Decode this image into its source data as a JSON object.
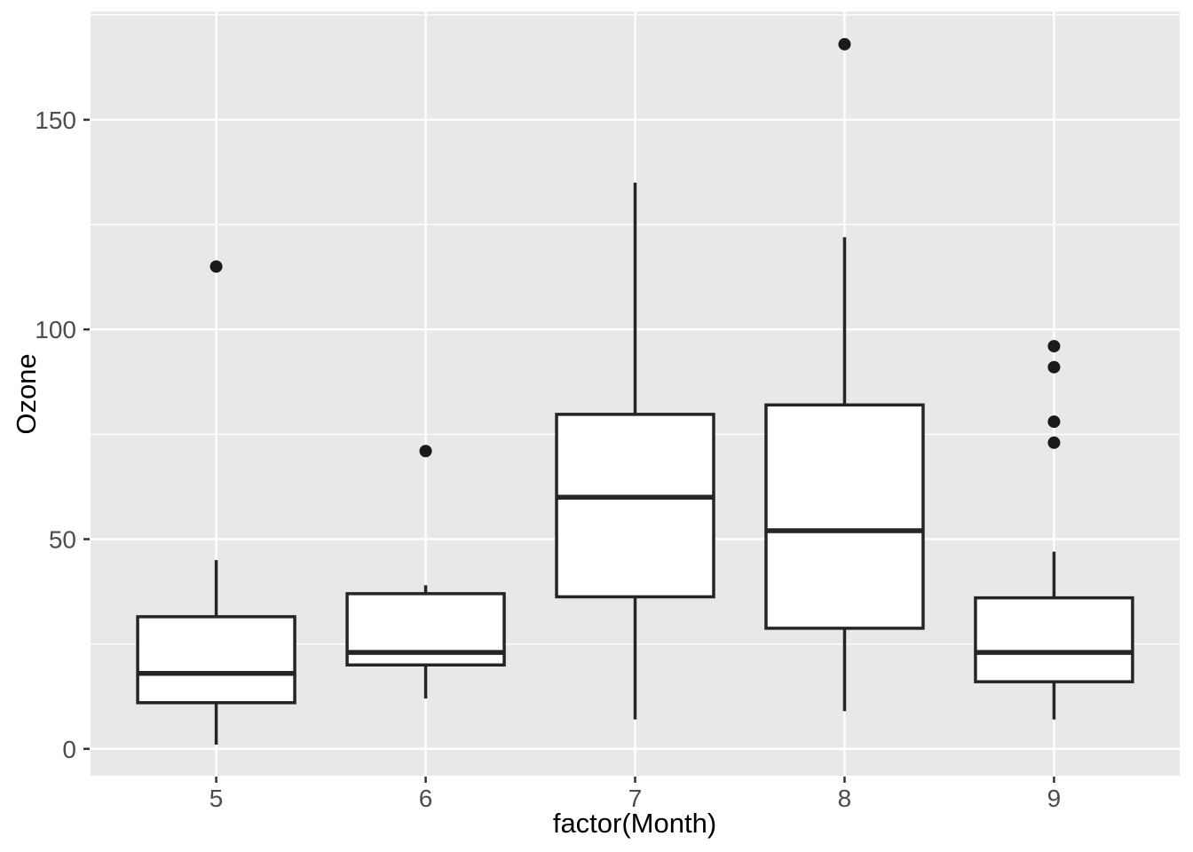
{
  "chart_data": {
    "type": "boxplot",
    "title": "",
    "xlabel": "factor(Month)",
    "ylabel": "Ozone",
    "categories": [
      "5",
      "6",
      "7",
      "8",
      "9"
    ],
    "boxes": [
      {
        "category": "5",
        "lower_whisker": 1,
        "q1": 11,
        "median": 18,
        "q3": 31.5,
        "upper_whisker": 45,
        "outliers": [
          115
        ]
      },
      {
        "category": "6",
        "lower_whisker": 12,
        "q1": 20,
        "median": 23,
        "q3": 37,
        "upper_whisker": 39,
        "outliers": [
          71
        ]
      },
      {
        "category": "7",
        "lower_whisker": 7,
        "q1": 36.25,
        "median": 60,
        "q3": 79.75,
        "upper_whisker": 135,
        "outliers": []
      },
      {
        "category": "8",
        "lower_whisker": 9,
        "q1": 28.75,
        "median": 52,
        "q3": 82,
        "upper_whisker": 122,
        "outliers": [
          168
        ]
      },
      {
        "category": "9",
        "lower_whisker": 7,
        "q1": 16,
        "median": 23,
        "q3": 36,
        "upper_whisker": 47,
        "outliers": [
          73,
          78,
          91,
          96
        ]
      }
    ],
    "y_axis": {
      "major_ticks": [
        0,
        50,
        100,
        150
      ],
      "minor_gridlines": [
        25,
        75,
        125,
        175
      ],
      "ylim": [
        -6.4,
        175.8
      ]
    },
    "grid": "on",
    "legend_position": "none",
    "style": {
      "panel_bg": "#E8E8E8",
      "grid_color": "#FFFFFF",
      "box_stroke": "#252525",
      "box_fill": "#FFFFFF",
      "outlier_color": "#1A1A1A",
      "axis_text_color": "#4D4D4D",
      "axis_title_color": "#000000",
      "tick_mark_color": "#333333"
    }
  }
}
